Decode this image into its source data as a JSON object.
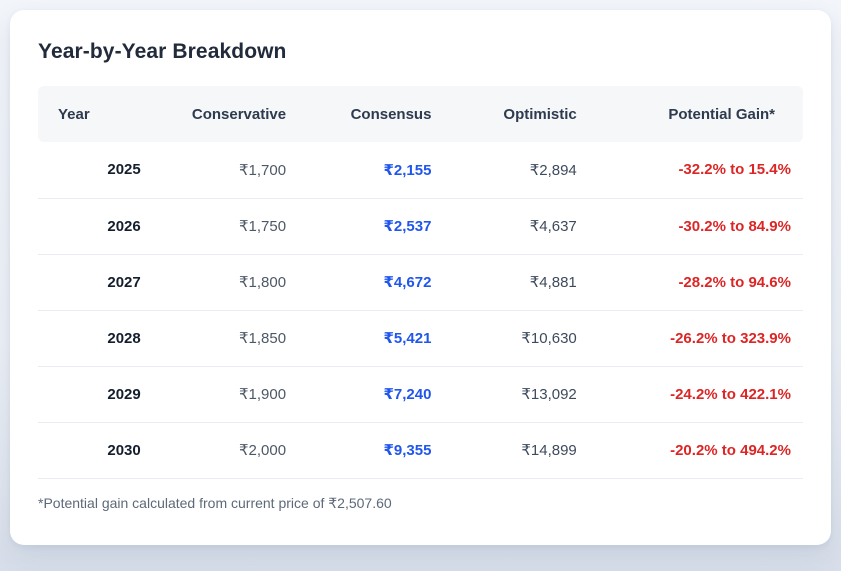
{
  "card": {
    "title": "Year-by-Year Breakdown",
    "footnote": "*Potential gain calculated from current price of ₹2,507.60"
  },
  "chart_data": {
    "type": "table",
    "title": "Year-by-Year Breakdown",
    "columns": [
      "Year",
      "Conservative",
      "Consensus",
      "Optimistic",
      "Potential Gain*"
    ],
    "rows": [
      {
        "year": "2025",
        "conservative": "₹1,700",
        "consensus": "₹2,155",
        "optimistic": "₹2,894",
        "potential_gain": "-32.2% to 15.4%"
      },
      {
        "year": "2026",
        "conservative": "₹1,750",
        "consensus": "₹2,537",
        "optimistic": "₹4,637",
        "potential_gain": "-30.2% to 84.9%"
      },
      {
        "year": "2027",
        "conservative": "₹1,800",
        "consensus": "₹4,672",
        "optimistic": "₹4,881",
        "potential_gain": "-28.2% to 94.6%"
      },
      {
        "year": "2028",
        "conservative": "₹1,850",
        "consensus": "₹5,421",
        "optimistic": "₹10,630",
        "potential_gain": "-26.2% to 323.9%"
      },
      {
        "year": "2029",
        "conservative": "₹1,900",
        "consensus": "₹7,240",
        "optimistic": "₹13,092",
        "potential_gain": "-24.2% to 422.1%"
      },
      {
        "year": "2030",
        "conservative": "₹2,000",
        "consensus": "₹9,355",
        "optimistic": "₹14,899",
        "potential_gain": "-20.2% to 494.2%"
      }
    ],
    "current_price": "₹2,507.60",
    "currency_symbol": "₹"
  },
  "colors": {
    "consensus_value": "#2056eb",
    "potential_gain_value": "#dc2626",
    "title_text": "#212b3b",
    "header_background": "#f5f7f9",
    "card_background": "#ffffff",
    "page_background": "#e6ebf2",
    "row_divider": "#e9edf2",
    "muted_text": "#5d6979"
  }
}
